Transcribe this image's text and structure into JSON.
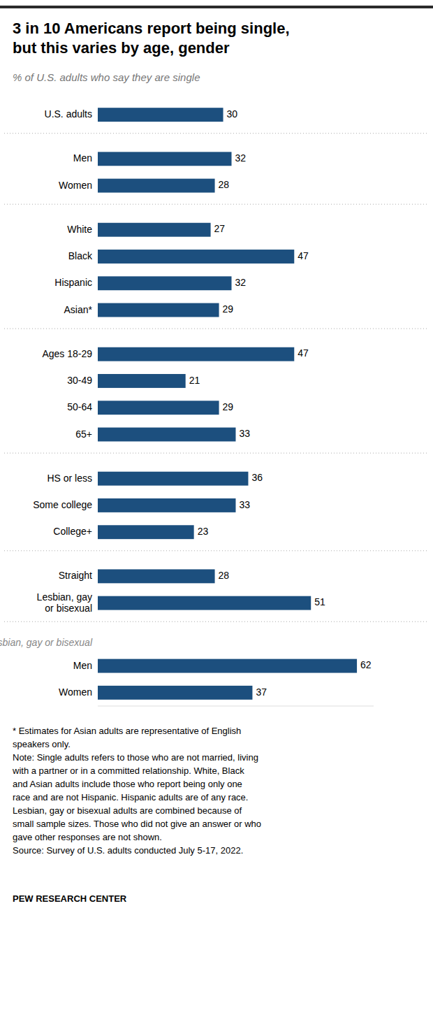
{
  "chart_data": {
    "type": "bar",
    "orientation": "horizontal",
    "title": "3 in 10 Americans report being single,\nbut this varies by age, gender",
    "subtitle": "% of U.S. adults who say they are single",
    "color": "#1c4f7e",
    "xlim": [
      0,
      66
    ],
    "tick_labels": false,
    "grid": false,
    "data_labels": true,
    "groups": [
      {
        "categories": [
          "U.S. adults"
        ],
        "values": [
          30
        ]
      },
      {
        "categories": [
          "Men",
          "Women"
        ],
        "values": [
          32,
          28
        ]
      },
      {
        "categories": [
          "White",
          "Black",
          "Hispanic",
          "Asian*"
        ],
        "values": [
          27,
          47,
          32,
          29
        ]
      },
      {
        "categories": [
          "Ages 18-29",
          "30-49",
          "50-64",
          "65+"
        ],
        "values": [
          47,
          21,
          29,
          33
        ]
      },
      {
        "categories": [
          "HS or less",
          "Some college",
          "College+"
        ],
        "values": [
          36,
          33,
          23
        ]
      },
      {
        "categories": [
          "Straight",
          "Lesbian, gay\nor bisexual"
        ],
        "values": [
          28,
          51
        ]
      },
      {
        "label": "Lesbian, gay or bisexual",
        "categories": [
          "Men",
          "Women"
        ],
        "values": [
          62,
          37
        ]
      }
    ],
    "footnotes": "* Estimates for Asian adults are representative of English\nspeakers only.\nNote: Single adults refers to those who are not married, living\nwith a partner or in a committed relationship. White, Black\nand Asian adults include those who report being only one\nrace and are not Hispanic. Hispanic adults are of any race.\nLesbian, gay or bisexual adults are combined because of\nsmall sample sizes. Those who did not give an answer or who\ngave other responses are not shown.\nSource: Survey of U.S. adults conducted July 5-17, 2022.",
    "source": "PEW RESEARCH CENTER"
  }
}
